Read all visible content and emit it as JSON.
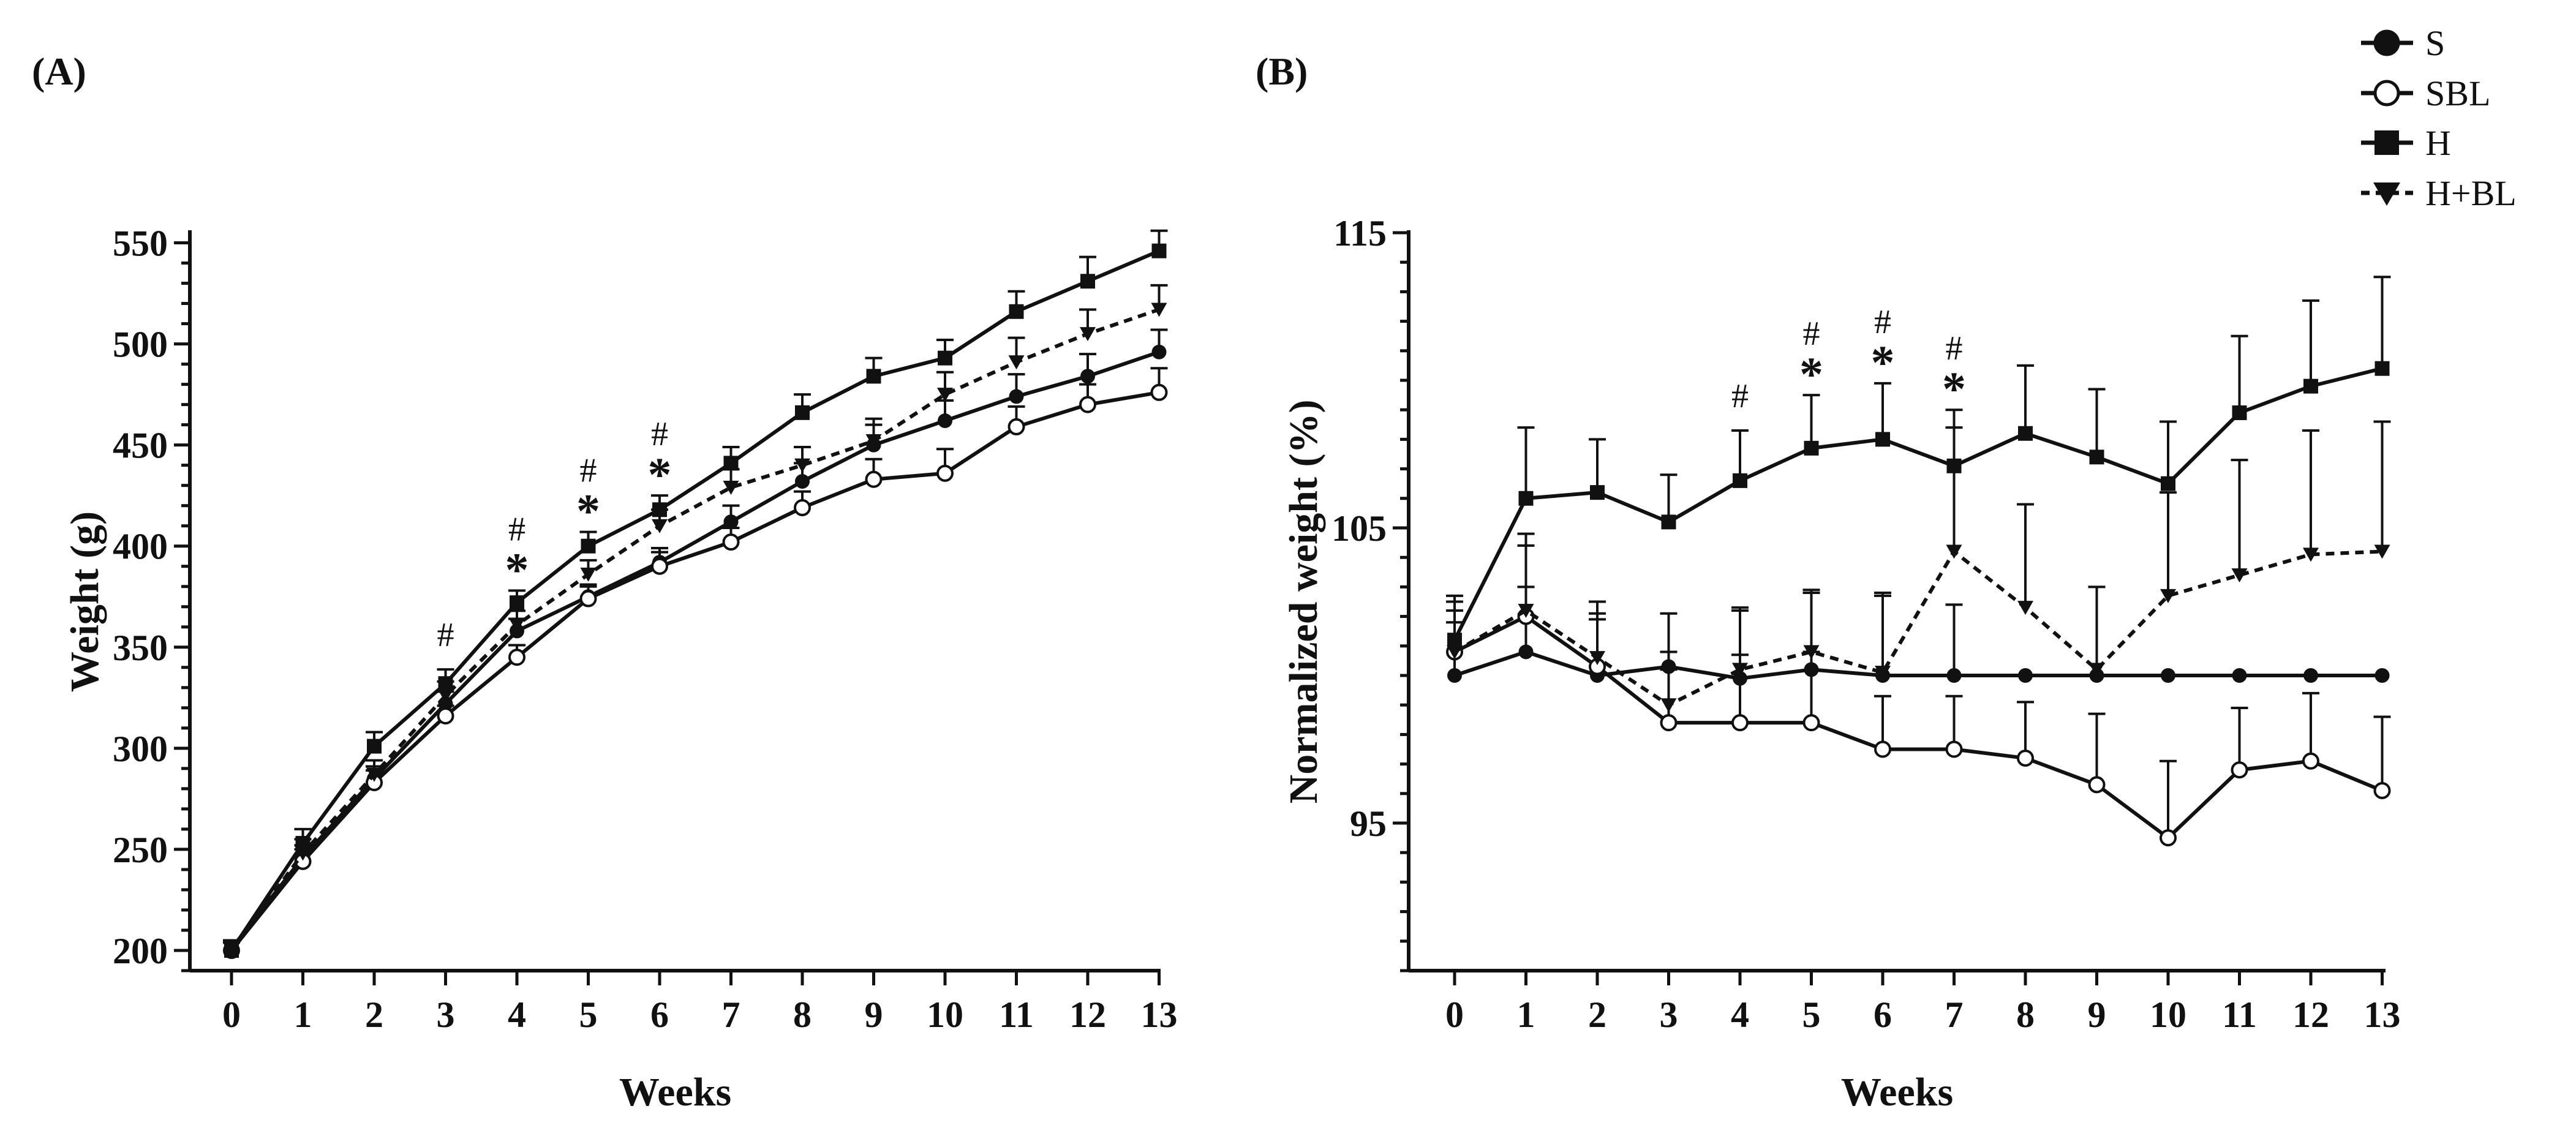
{
  "figure": {
    "legend": [
      {
        "name": "S",
        "marker": "circle-filled",
        "line": "solid"
      },
      {
        "name": "SBL",
        "marker": "circle-open",
        "line": "solid"
      },
      {
        "name": "H",
        "marker": "square-filled",
        "line": "solid"
      },
      {
        "name": "H+BL",
        "marker": "triangle-down-filled",
        "line": "dashed"
      }
    ],
    "colors": {
      "ink": "#111111",
      "background": "#ffffff"
    }
  },
  "chart_data": [
    {
      "panel": "(A)",
      "type": "line",
      "xlabel": "Weeks",
      "ylabel": "Weight (g)",
      "ylim": [
        190,
        555
      ],
      "yticks": [
        200,
        250,
        300,
        350,
        400,
        450,
        500,
        550
      ],
      "x": [
        0,
        1,
        2,
        3,
        4,
        5,
        6,
        7,
        8,
        9,
        10,
        11,
        12,
        13
      ],
      "series": [
        {
          "name": "S",
          "values": [
            201,
            246,
            285,
            322,
            358,
            375,
            392,
            412,
            432,
            450,
            462,
            474,
            484,
            496
          ],
          "err": [
            4,
            6,
            6,
            6,
            6,
            6,
            7,
            8,
            9,
            10,
            10,
            11,
            11,
            11
          ]
        },
        {
          "name": "SBL",
          "values": [
            200,
            244,
            283,
            316,
            345,
            374,
            390,
            402,
            419,
            433,
            436,
            459,
            470,
            476
          ],
          "err": [
            4,
            6,
            6,
            5,
            6,
            6,
            7,
            7,
            8,
            10,
            12,
            10,
            10,
            12
          ]
        },
        {
          "name": "H",
          "values": [
            200,
            253,
            301,
            332,
            372,
            400,
            418,
            441,
            466,
            484,
            493,
            516,
            531,
            546
          ],
          "err": [
            4,
            7,
            7,
            7,
            6,
            7,
            7,
            8,
            9,
            9,
            9,
            10,
            12,
            10
          ]
        },
        {
          "name": "H+BL",
          "values": [
            200,
            248,
            287,
            326,
            361,
            386,
            410,
            429,
            440,
            452,
            475,
            491,
            505,
            517
          ],
          "err": [
            4,
            7,
            7,
            7,
            7,
            7,
            8,
            9,
            9,
            11,
            11,
            12,
            12,
            12
          ]
        }
      ],
      "annotations": [
        {
          "x": 3,
          "symbols": [
            "#"
          ]
        },
        {
          "x": 4,
          "symbols": [
            "#",
            "*"
          ]
        },
        {
          "x": 5,
          "symbols": [
            "#",
            "*"
          ]
        },
        {
          "x": 6,
          "symbols": [
            "#",
            "*"
          ]
        }
      ]
    },
    {
      "panel": "(B)",
      "type": "line",
      "xlabel": "Weeks",
      "ylabel": "Normalized weight (%)",
      "ylim": [
        90,
        115
      ],
      "yticks": [
        95,
        105,
        115
      ],
      "x": [
        0,
        1,
        2,
        3,
        4,
        5,
        6,
        7,
        8,
        9,
        10,
        11,
        12,
        13
      ],
      "series": [
        {
          "name": "S",
          "values": [
            100,
            100.8,
            100,
            100.3,
            99.9,
            100.2,
            100,
            100,
            100,
            100,
            100,
            100,
            100,
            100
          ],
          "err": [
            1.8,
            2.2,
            2.1,
            1.8,
            2.3,
            2.6,
            2.7,
            2.4,
            0,
            0,
            0,
            0,
            0,
            0
          ]
        },
        {
          "name": "SBL",
          "values": [
            100.8,
            102,
            100.3,
            98.4,
            98.4,
            98.4,
            97.5,
            97.5,
            97.2,
            96.3,
            94.5,
            96.8,
            97.1,
            96.1
          ],
          "err": [
            1.4,
            2.4,
            1.6,
            1.8,
            2.3,
            2.4,
            1.8,
            1.8,
            1.9,
            2.4,
            2.6,
            2.1,
            2.3,
            2.5
          ]
        },
        {
          "name": "H",
          "values": [
            101.2,
            106,
            106.2,
            105.2,
            106.6,
            107.7,
            108,
            107.1,
            108.2,
            107.4,
            106.5,
            108.9,
            109.8,
            110.4
          ],
          "err": [
            1.5,
            2.4,
            1.8,
            1.6,
            1.7,
            1.8,
            1.9,
            1.9,
            2.3,
            2.3,
            2.1,
            2.6,
            2.9,
            3.1
          ]
        },
        {
          "name": "H+BL",
          "values": [
            100.8,
            102.2,
            100.6,
            99,
            100.2,
            100.8,
            100.1,
            104.2,
            102.3,
            100.2,
            102.7,
            103.4,
            104.1,
            104.2
          ],
          "err": [
            1.7,
            2.6,
            1.9,
            1.8,
            2.1,
            2.1,
            2.7,
            4.2,
            3.5,
            2.8,
            3.5,
            3.9,
            4.2,
            4.4
          ]
        }
      ],
      "annotations": [
        {
          "x": 4,
          "symbols": [
            "#"
          ]
        },
        {
          "x": 5,
          "symbols": [
            "#",
            "*"
          ]
        },
        {
          "x": 6,
          "symbols": [
            "#",
            "*"
          ]
        },
        {
          "x": 7,
          "symbols": [
            "#",
            "*"
          ]
        }
      ]
    }
  ]
}
